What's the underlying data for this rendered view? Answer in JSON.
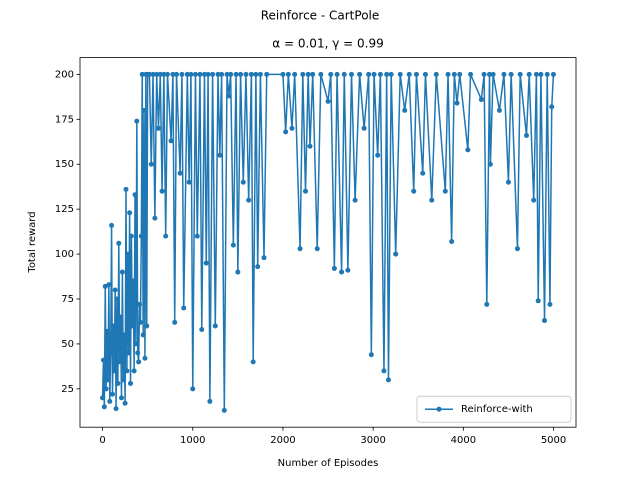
{
  "chart_data": {
    "type": "line",
    "title": "Reinforce - CartPole",
    "subtitle": "α = 0.01, γ = 0.99",
    "x_label": "Number of Episodes",
    "y_label": "Total reward",
    "xlim": [
      -250,
      5249
    ],
    "ylim": [
      3.65,
      209.35
    ],
    "xticks": [
      0,
      1000,
      2000,
      3000,
      4000,
      5000
    ],
    "yticks": [
      25,
      50,
      75,
      100,
      125,
      150,
      175,
      200
    ],
    "legend": "lower right",
    "series": [
      {
        "name": "Reinforce-with",
        "color": "#1f77b4",
        "x": [
          0,
          10,
          20,
          30,
          40,
          50,
          60,
          70,
          80,
          90,
          100,
          110,
          120,
          130,
          140,
          150,
          160,
          170,
          180,
          190,
          200,
          210,
          220,
          230,
          240,
          250,
          260,
          270,
          280,
          290,
          300,
          310,
          320,
          330,
          340,
          350,
          360,
          370,
          380,
          390,
          400,
          410,
          420,
          430,
          440,
          450,
          460,
          470,
          480,
          490,
          500,
          520,
          540,
          560,
          580,
          600,
          620,
          640,
          660,
          680,
          700,
          720,
          760,
          780,
          800,
          820,
          860,
          880,
          900,
          940,
          960,
          980,
          1000,
          1030,
          1050,
          1080,
          1100,
          1130,
          1150,
          1170,
          1190,
          1220,
          1250,
          1280,
          1300,
          1320,
          1350,
          1380,
          1400,
          1420,
          1450,
          1480,
          1500,
          1530,
          1560,
          1590,
          1620,
          1650,
          1670,
          1700,
          1720,
          1750,
          1790,
          1820,
          2000,
          2030,
          2060,
          2100,
          2130,
          2190,
          2220,
          2250,
          2280,
          2300,
          2330,
          2380,
          2420,
          2500,
          2530,
          2570,
          2600,
          2650,
          2680,
          2720,
          2760,
          2800,
          2850,
          2900,
          2950,
          2980,
          3010,
          3050,
          3080,
          3120,
          3150,
          3170,
          3200,
          3250,
          3300,
          3350,
          3400,
          3450,
          3480,
          3550,
          3580,
          3650,
          3700,
          3800,
          3830,
          3870,
          3900,
          3930,
          3960,
          4050,
          4080,
          4200,
          4230,
          4260,
          4290,
          4300,
          4330,
          4400,
          4450,
          4500,
          4530,
          4600,
          4630,
          4700,
          4730,
          4780,
          4810,
          4830,
          4860,
          4900,
          4930,
          4960,
          4980,
          4999
        ],
        "values": [
          20,
          41,
          15,
          82,
          25,
          57,
          30,
          83,
          18,
          45,
          116,
          22,
          60,
          35,
          80,
          14,
          75,
          28,
          106,
          40,
          65,
          20,
          90,
          30,
          55,
          17,
          136,
          35,
          100,
          45,
          123,
          28,
          110,
          60,
          85,
          35,
          133,
          50,
          174,
          45,
          40,
          72,
          62,
          110,
          200,
          55,
          180,
          42,
          200,
          60,
          200,
          200,
          150,
          200,
          120,
          200,
          170,
          200,
          135,
          200,
          110,
          200,
          163,
          200,
          62,
          200,
          145,
          200,
          70,
          200,
          140,
          200,
          25,
          200,
          110,
          200,
          58,
          200,
          95,
          200,
          18,
          200,
          60,
          200,
          155,
          200,
          13,
          200,
          188,
          200,
          105,
          200,
          90,
          200,
          140,
          200,
          130,
          200,
          40,
          200,
          93,
          200,
          98,
          200,
          200,
          168,
          200,
          170,
          200,
          103,
          200,
          135,
          200,
          160,
          200,
          103,
          200,
          185,
          200,
          92,
          200,
          90,
          200,
          91,
          200,
          130,
          200,
          170,
          200,
          44,
          200,
          155,
          200,
          35,
          200,
          30,
          200,
          100,
          200,
          180,
          200,
          135,
          200,
          145,
          200,
          130,
          200,
          135,
          200,
          107,
          200,
          184,
          200,
          158,
          200,
          186,
          200,
          72,
          200,
          150,
          200,
          180,
          200,
          140,
          200,
          103,
          200,
          166,
          200,
          130,
          200,
          74,
          200,
          63,
          200,
          72,
          182,
          200
        ]
      }
    ]
  }
}
